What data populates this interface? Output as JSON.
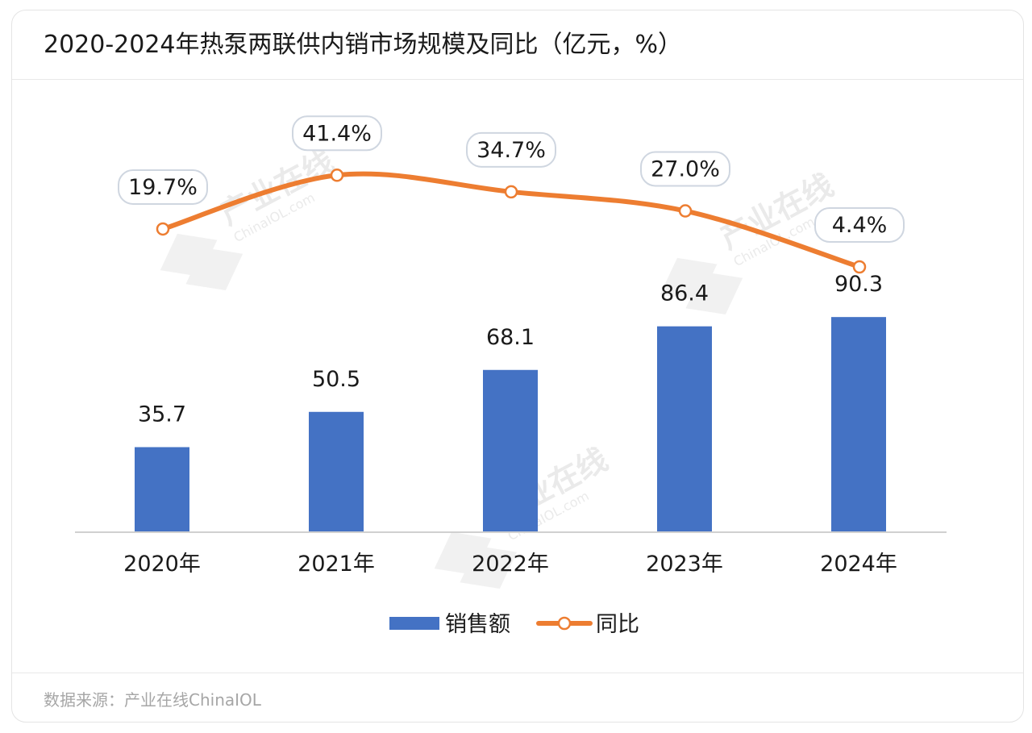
{
  "title": "2020-2024年热泵两联供内销市场规模及同比（亿元，%）",
  "source": "数据来源：产业在线ChinaIOL",
  "watermark": {
    "cn": "产业在线",
    "en": "ChinaIOL.com"
  },
  "colors": {
    "bar": "#4472c4",
    "line": "#ed7d31",
    "axis": "#d0d0d0",
    "text": "#1a1a1a"
  },
  "chart_data": {
    "type": "bar",
    "categories": [
      "2020年",
      "2021年",
      "2022年",
      "2023年",
      "2024年"
    ],
    "series": [
      {
        "name": "销售额",
        "type": "bar",
        "values": [
          35.7,
          50.5,
          68.1,
          86.4,
          90.3
        ],
        "labels": [
          "35.7",
          "50.5",
          "68.1",
          "86.4",
          "90.3"
        ]
      },
      {
        "name": "同比",
        "type": "line",
        "values": [
          19.7,
          41.4,
          34.7,
          27.0,
          4.4
        ],
        "labels": [
          "19.7%",
          "41.4%",
          "34.7%",
          "27.0%",
          "4.4%"
        ]
      }
    ],
    "legend_position": "bottom",
    "grid": false
  }
}
